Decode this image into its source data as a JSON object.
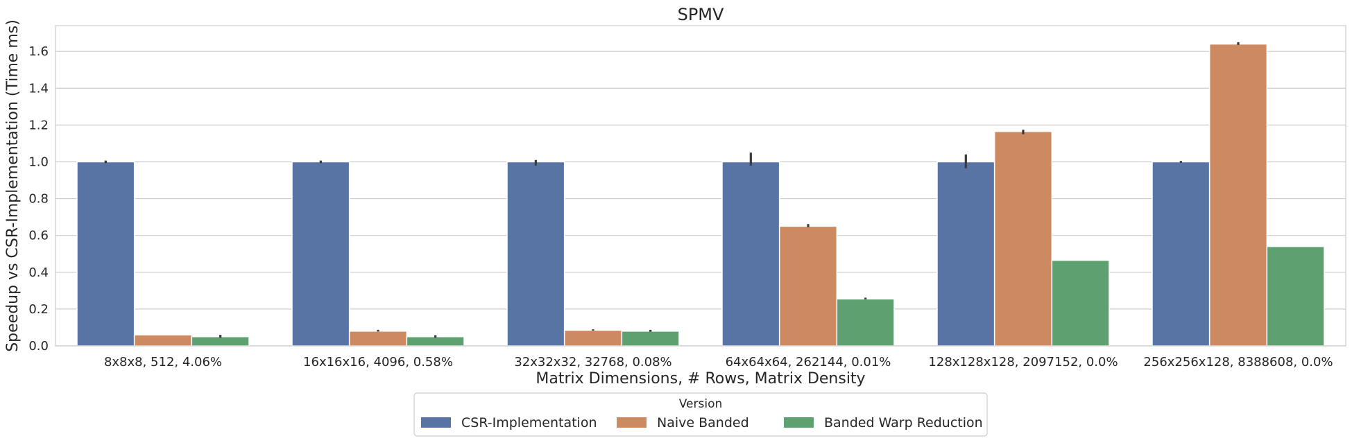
{
  "chart_data": {
    "type": "bar",
    "title": "SPMV",
    "xlabel": "Matrix Dimensions, # Rows, Matrix Density",
    "ylabel": "Speedup vs CSR-Implementation (Time ms)",
    "ylim": [
      0,
      1.74
    ],
    "yticks": [
      0.0,
      0.2,
      0.4,
      0.6,
      0.8,
      1.0,
      1.2,
      1.4,
      1.6
    ],
    "ytick_labels": [
      "0.0",
      "0.2",
      "0.4",
      "0.6",
      "0.8",
      "1.0",
      "1.2",
      "1.4",
      "1.6"
    ],
    "grid": "horizontal",
    "categories": [
      "8x8x8, 512, 4.06%",
      "16x16x16, 4096, 0.58%",
      "32x32x32, 32768, 0.08%",
      "64x64x64, 262144, 0.01%",
      "128x128x128, 2097152, 0.0%",
      "256x256x128, 8388608, 0.0%"
    ],
    "series": [
      {
        "name": "CSR-Implementation",
        "color": "#5874a4",
        "values": [
          1.0,
          1.0,
          1.0,
          1.0,
          1.0,
          1.0
        ],
        "err_low": [
          0.993,
          0.993,
          0.98,
          0.98,
          0.965,
          0.995
        ],
        "err_high": [
          1.007,
          1.007,
          1.01,
          1.05,
          1.04,
          1.005
        ]
      },
      {
        "name": "Naive Banded",
        "color": "#cd8a61",
        "values": [
          0.06,
          0.08,
          0.085,
          0.65,
          1.165,
          1.64
        ],
        "err_low": [
          0.06,
          0.078,
          0.083,
          0.645,
          1.15,
          1.635
        ],
        "err_high": [
          0.06,
          0.087,
          0.09,
          0.662,
          1.175,
          1.65
        ]
      },
      {
        "name": "Banded Warp Reduction",
        "color": "#5fa070",
        "values": [
          0.05,
          0.05,
          0.08,
          0.255,
          0.465,
          0.54
        ],
        "err_low": [
          0.045,
          0.045,
          0.077,
          0.253,
          0.465,
          0.54
        ],
        "err_high": [
          0.06,
          0.058,
          0.087,
          0.262,
          0.465,
          0.54
        ]
      }
    ],
    "legend": {
      "title": "Version",
      "placement": "bottom-center"
    }
  }
}
